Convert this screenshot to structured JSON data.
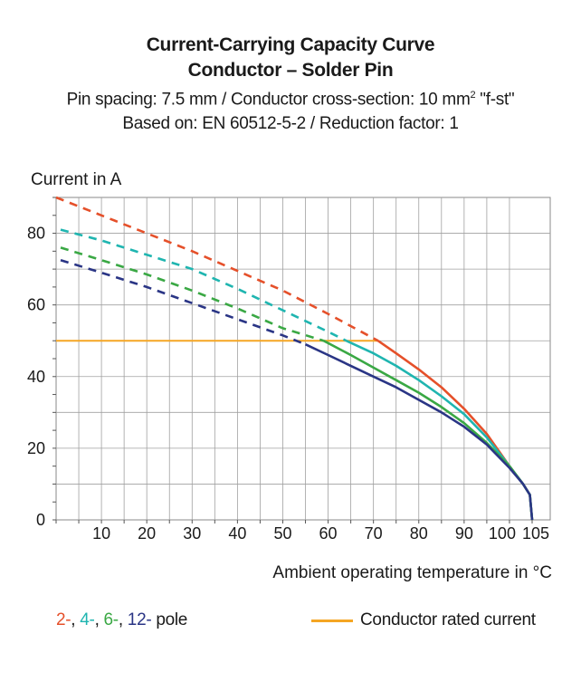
{
  "header": {
    "title_line1": "Current-Carrying Capacity Curve",
    "title_line2": "Conductor – Solder Pin",
    "subtitle_line1_prefix": "Pin spacing: 7.5 mm / Conductor cross-section: 10 mm",
    "subtitle_line1_sup": "2",
    "subtitle_line1_suffix": " \"f-st\"",
    "subtitle_line2": "Based on: EN 60512-5-2 / Reduction factor: 1"
  },
  "legend": {
    "pole_2": "2-",
    "pole_4": "4-",
    "pole_6": "6-",
    "pole_12": "12-",
    "pole_suffix": " pole",
    "sep": ",",
    "rated_label": "Conductor rated current"
  },
  "colors": {
    "pole_2": "#e5502a",
    "pole_4": "#1fb5b0",
    "pole_6": "#3aa844",
    "pole_12": "#2a3585",
    "rated": "#f5a623",
    "grid": "#888888"
  },
  "chart_data": {
    "type": "line",
    "title": "Current-Carrying Capacity Curve",
    "ylabel": "Current in A",
    "xlabel": "Ambient operating temperature in °C",
    "xlim": [
      0,
      105
    ],
    "ylim": [
      0,
      90
    ],
    "x_ticks": [
      10,
      20,
      30,
      40,
      50,
      60,
      70,
      80,
      90,
      100,
      105
    ],
    "y_ticks": [
      0,
      20,
      40,
      60,
      80
    ],
    "grid": true,
    "series": [
      {
        "name": "2- pole",
        "color_key": "pole_2",
        "dashed": {
          "x": [
            0,
            10,
            20,
            30,
            40,
            50,
            60,
            71
          ],
          "y": [
            90,
            85,
            80,
            75,
            69.5,
            64,
            57.5,
            50
          ]
        },
        "solid": {
          "x": [
            71,
            75,
            80,
            85,
            90,
            95,
            100,
            103,
            104.5,
            105
          ],
          "y": [
            50,
            46.5,
            42,
            37,
            31,
            24,
            15,
            10,
            7,
            0
          ]
        }
      },
      {
        "name": "4- pole",
        "color_key": "pole_4",
        "dashed": {
          "x": [
            1,
            10,
            20,
            30,
            40,
            50,
            60,
            64
          ],
          "y": [
            81,
            78,
            74,
            70,
            64.5,
            58.5,
            52.5,
            50
          ]
        },
        "solid": {
          "x": [
            64,
            70,
            75,
            80,
            85,
            90,
            95,
            100,
            103,
            104.5,
            105
          ],
          "y": [
            50,
            46.5,
            43,
            39,
            34.5,
            29.5,
            23,
            15,
            10,
            7,
            0
          ]
        }
      },
      {
        "name": "6- pole",
        "color_key": "pole_6",
        "dashed": {
          "x": [
            1,
            10,
            20,
            30,
            40,
            50,
            59
          ],
          "y": [
            76,
            72.5,
            68.5,
            64,
            59,
            53.5,
            50
          ]
        },
        "solid": {
          "x": [
            59,
            65,
            70,
            75,
            80,
            85,
            90,
            95,
            100,
            103,
            104.5,
            105
          ],
          "y": [
            50,
            46,
            42.5,
            39,
            35.5,
            31.5,
            27,
            21.5,
            15,
            10,
            7,
            0
          ]
        }
      },
      {
        "name": "12- pole",
        "color_key": "pole_12",
        "dashed": {
          "x": [
            1,
            10,
            20,
            30,
            40,
            50,
            55
          ],
          "y": [
            72.5,
            69,
            65,
            60.5,
            56,
            51.5,
            49
          ]
        },
        "solid": {
          "x": [
            55,
            60,
            65,
            70,
            75,
            80,
            85,
            90,
            95,
            100,
            103,
            104.5,
            105
          ],
          "y": [
            49,
            46,
            43,
            40,
            37,
            33.5,
            30,
            26,
            21,
            14.5,
            10,
            7,
            0
          ]
        }
      }
    ],
    "rated_current": {
      "name": "Conductor rated current",
      "x": [
        0,
        71
      ],
      "y": [
        50,
        50
      ]
    }
  }
}
